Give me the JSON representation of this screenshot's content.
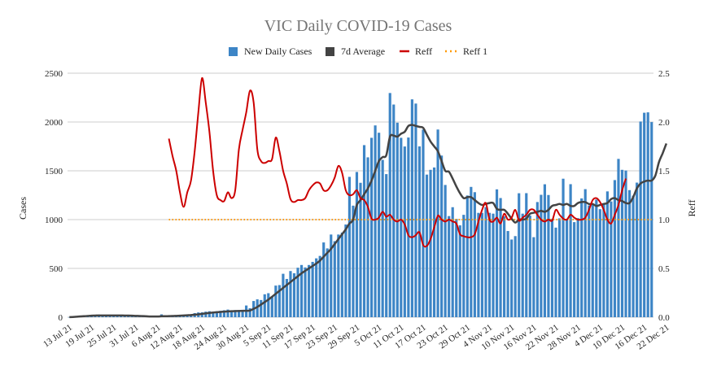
{
  "chart_data": {
    "type": "bar",
    "title": "VIC Daily COVID-19 Cases",
    "ylabel": "Cases",
    "y2label": "Reff",
    "ylim": [
      0,
      2500
    ],
    "y2lim": [
      0,
      2.5
    ],
    "yticks": [
      0,
      500,
      1000,
      1500,
      2000,
      2500
    ],
    "y2ticks": [
      "0.0",
      "0.5",
      "1.0",
      "1.5",
      "2.0",
      "2.5"
    ],
    "x_tick_labels": [
      "13 Jul 21",
      "19 Jul 21",
      "25 Jul 21",
      "31 Jul 21",
      "6 Aug 21",
      "12 Aug 21",
      "18 Aug 21",
      "24 Aug 21",
      "30 Aug 21",
      "5 Sep 21",
      "11 Sep 21",
      "17 Sep 21",
      "23 Sep 21",
      "29 Sep 21",
      "5 Oct 21",
      "11 Oct 21",
      "17 Oct 21",
      "23 Oct 21",
      "29 Oct 21",
      "4 Nov 21",
      "10 Nov 21",
      "16 Nov 21",
      "22 Nov 21",
      "28 Nov 21",
      "4 Dec 21",
      "10 Dec 21",
      "16 Dec 21",
      "22 Dec 21"
    ],
    "x_tick_day_index": [
      0,
      6,
      12,
      18,
      24,
      30,
      36,
      42,
      48,
      54,
      60,
      66,
      72,
      78,
      84,
      90,
      96,
      102,
      108,
      114,
      120,
      126,
      132,
      138,
      144,
      150,
      156,
      162
    ],
    "legend": [
      "New Daily Cases",
      "7d Average",
      "Reff",
      "Reff 1"
    ],
    "colors": {
      "bars": "#3d85c6",
      "avg": "#434343",
      "reff": "#cc0000",
      "reff1": "#ff9900",
      "grid": "#cccccc"
    },
    "series": [
      {
        "name": "New Daily Cases",
        "values": [
          1,
          3,
          3,
          7,
          10,
          16,
          19,
          22,
          26,
          23,
          22,
          20,
          20,
          20,
          17,
          15,
          15,
          14,
          11,
          10,
          8,
          5,
          6,
          7,
          8,
          29,
          11,
          13,
          14,
          20,
          22,
          25,
          20,
          24,
          42,
          49,
          50,
          57,
          61,
          55,
          61,
          65,
          71,
          78,
          64,
          73,
          73,
          76,
          120,
          92,
          166,
          183,
          176,
          235,
          246,
          208,
          324,
          329,
          445,
          392,
          473,
          450,
          507,
          535,
          510,
          535,
          567,
          603,
          628,
          766,
          705,
          847,
          779,
          847,
          867,
          950,
          1438,
          1143,
          1488,
          1377,
          1763,
          1638,
          1838,
          1965,
          1890,
          1612,
          1466,
          2297,
          2179,
          1993,
          1838,
          1749,
          1841,
          2232,
          2189,
          1750,
          1923,
          1461,
          1510,
          1534,
          1923,
          1656,
          1355,
          1036,
          1127,
          1007,
          941,
          1049,
          1247,
          1335,
          1281,
          1069,
          1069,
          1128,
          1069,
          1061,
          1310,
          1221,
          1033,
          883,
          796,
          831,
          1270,
          1061,
          1271,
          1041,
          820,
          1180,
          1254,
          1362,
          1252,
          1007,
          918,
          1013,
          1419,
          1008,
          1363,
          974,
          1015,
          1217,
          1312,
          1145,
          1153,
          1205,
          1107,
          1155,
          1289,
          1186,
          1405,
          1622,
          1510,
          1503,
          1302,
          1245,
          1379,
          2005,
          2095,
          2099,
          1999
        ]
      },
      {
        "name": "7d Average",
        "values": [
          1,
          2,
          5,
          8,
          10,
          13,
          16,
          17,
          18,
          18,
          18,
          18,
          18,
          18,
          18,
          17,
          17,
          16,
          14,
          13,
          11,
          9,
          7,
          7,
          7,
          10,
          10,
          11,
          12,
          14,
          16,
          18,
          20,
          22,
          26,
          29,
          34,
          39,
          44,
          48,
          51,
          54,
          57,
          59,
          61,
          63,
          64,
          65,
          66,
          68,
          86,
          105,
          130,
          155,
          180,
          210,
          240,
          270,
          300,
          330,
          360,
          390,
          420,
          450,
          475,
          500,
          525,
          550,
          580,
          620,
          660,
          700,
          750,
          800,
          850,
          900,
          960,
          1000,
          1150,
          1200,
          1260,
          1320,
          1400,
          1500,
          1600,
          1640,
          1660,
          1850,
          1860,
          1850,
          1880,
          1900,
          1960,
          1970,
          1960,
          1950,
          1940,
          1870,
          1800,
          1750,
          1700,
          1600,
          1500,
          1490,
          1420,
          1340,
          1270,
          1220,
          1230,
          1230,
          1200,
          1170,
          1150,
          1160,
          1170,
          1170,
          1110,
          1100,
          1100,
          1060,
          1010,
          970,
          1000,
          1000,
          1010,
          1060,
          1070,
          1080,
          1090,
          1080,
          1100,
          1140,
          1150,
          1160,
          1150,
          1160,
          1140,
          1140,
          1170,
          1180,
          1180,
          1160,
          1160,
          1140,
          1150,
          1160,
          1170,
          1210,
          1220,
          1200,
          1190,
          1170,
          1170,
          1230,
          1320,
          1370,
          1390,
          1400,
          1400,
          1450,
          1590,
          1680,
          1780
        ]
      },
      {
        "name": "Reff",
        "values": [
          null,
          null,
          null,
          null,
          null,
          null,
          null,
          null,
          null,
          null,
          null,
          null,
          null,
          null,
          null,
          null,
          null,
          null,
          null,
          null,
          null,
          null,
          null,
          null,
          null,
          null,
          null,
          1.83,
          1.65,
          1.5,
          1.28,
          1.13,
          1.28,
          1.4,
          1.7,
          2.1,
          2.45,
          2.2,
          1.9,
          1.5,
          1.25,
          1.2,
          1.19,
          1.28,
          1.22,
          1.3,
          1.72,
          1.92,
          2.1,
          2.32,
          2.2,
          1.72,
          1.6,
          1.58,
          1.6,
          1.62,
          1.84,
          1.7,
          1.5,
          1.37,
          1.21,
          1.18,
          1.2,
          1.2,
          1.22,
          1.3,
          1.35,
          1.38,
          1.37,
          1.3,
          1.3,
          1.35,
          1.43,
          1.55,
          1.48,
          1.3,
          1.25,
          1.26,
          1.3,
          1.22,
          1.2,
          1.13,
          1.01,
          1.0,
          1.02,
          1.08,
          1.03,
          1.05,
          1.0,
          0.98,
          1.0,
          0.95,
          0.84,
          0.82,
          0.84,
          0.87,
          0.74,
          0.73,
          0.8,
          0.92,
          1.04,
          1.0,
          0.98,
          1.0,
          0.98,
          0.96,
          0.85,
          0.83,
          0.82,
          0.82,
          0.85,
          0.98,
          1.1,
          1.17,
          1.0,
          0.98,
          1.02,
          0.96,
          1.06,
          1.0,
          1.02,
          1.1,
          0.99,
          1.02,
          1.05,
          1.1,
          1.1,
          1.05,
          1.0,
          0.98,
          1.0,
          0.99,
          1.1,
          1.05,
          1.01,
          1.0,
          1.05,
          1.02,
          1.0,
          1.0,
          1.02,
          1.1,
          1.2,
          1.22,
          1.18,
          1.1,
          1.0,
          0.96,
          1.05,
          1.15,
          1.3,
          1.42
        ]
      },
      {
        "name": "Reff 1",
        "values": [
          1.0,
          1.0
        ]
      }
    ]
  }
}
